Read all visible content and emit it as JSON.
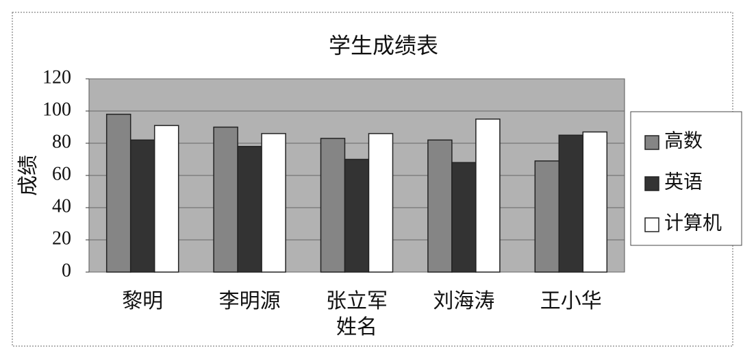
{
  "chart_data": {
    "type": "bar",
    "title": "学生成绩表",
    "x_label": "姓名",
    "y_label": "成绩",
    "categories": [
      "黎明",
      "李明源",
      "张立军",
      "刘海涛",
      "王小华"
    ],
    "series": [
      {
        "name": "高数",
        "color": "#858585",
        "values": [
          98,
          90,
          83,
          82,
          69
        ]
      },
      {
        "name": "英语",
        "color": "#333333",
        "values": [
          82,
          78,
          70,
          68,
          85
        ]
      },
      {
        "name": "计算机",
        "color": "#ffffff",
        "values": [
          91,
          86,
          86,
          95,
          87
        ]
      }
    ],
    "ylim": [
      0,
      120
    ],
    "yticks": [
      0,
      20,
      40,
      60,
      80,
      100,
      120
    ],
    "grid": true,
    "legend": "right"
  }
}
